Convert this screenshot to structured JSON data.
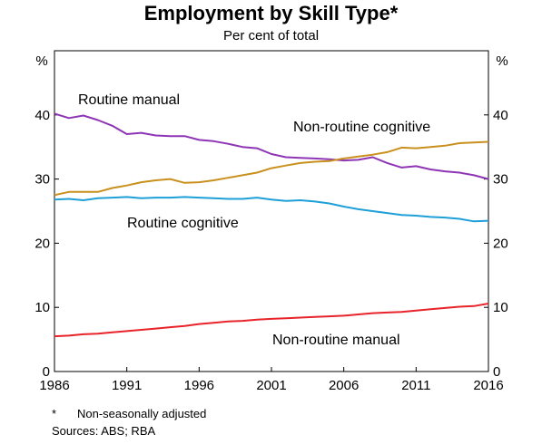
{
  "chart_data": {
    "type": "line",
    "title": "Employment by Skill Type*",
    "subtitle": "Per cent of total",
    "ylabel_left": "%",
    "ylabel_right": "%",
    "xlim": [
      1986,
      2016
    ],
    "ylim": [
      0,
      50
    ],
    "x_ticks": [
      1986,
      1991,
      1996,
      2001,
      2006,
      2011,
      2016
    ],
    "y_ticks": [
      0,
      10,
      20,
      30,
      40
    ],
    "grid": false,
    "series": [
      {
        "name": "Routine manual",
        "color": "#8e35b5",
        "x": [
          1986,
          1987,
          1988,
          1989,
          1990,
          1991,
          1992,
          1993,
          1994,
          1995,
          1996,
          1997,
          1998,
          1999,
          2000,
          2001,
          2002,
          2003,
          2004,
          2005,
          2006,
          2007,
          2008,
          2009,
          2010,
          2011,
          2012,
          2013,
          2014,
          2015,
          2016
        ],
        "values": [
          40.2,
          39.5,
          39.9,
          39.2,
          38.3,
          37.0,
          37.2,
          36.8,
          36.7,
          36.7,
          36.1,
          35.9,
          35.5,
          35.0,
          34.8,
          33.9,
          33.4,
          33.3,
          33.2,
          33.1,
          32.9,
          33.0,
          33.4,
          32.5,
          31.8,
          32.0,
          31.5,
          31.2,
          31.0,
          30.6,
          30.0
        ]
      },
      {
        "name": "Non-routine cognitive",
        "color": "#c9901e",
        "x": [
          1986,
          1987,
          1988,
          1989,
          1990,
          1991,
          1992,
          1993,
          1994,
          1995,
          1996,
          1997,
          1998,
          1999,
          2000,
          2001,
          2002,
          2003,
          2004,
          2005,
          2006,
          2007,
          2008,
          2009,
          2010,
          2011,
          2012,
          2013,
          2014,
          2015,
          2016
        ],
        "values": [
          27.5,
          28.0,
          28.0,
          28.0,
          28.6,
          29.0,
          29.5,
          29.8,
          30.0,
          29.4,
          29.5,
          29.8,
          30.2,
          30.6,
          31.0,
          31.7,
          32.1,
          32.5,
          32.7,
          32.8,
          33.2,
          33.5,
          33.8,
          34.2,
          34.9,
          34.8,
          35.0,
          35.2,
          35.6,
          35.7,
          35.8
        ]
      },
      {
        "name": "Routine cognitive",
        "color": "#1e9fd8",
        "x": [
          1986,
          1987,
          1988,
          1989,
          1990,
          1991,
          1992,
          1993,
          1994,
          1995,
          1996,
          1997,
          1998,
          1999,
          2000,
          2001,
          2002,
          2003,
          2004,
          2005,
          2006,
          2007,
          2008,
          2009,
          2010,
          2011,
          2012,
          2013,
          2014,
          2015,
          2016
        ],
        "values": [
          26.8,
          26.9,
          26.7,
          27.0,
          27.1,
          27.2,
          27.0,
          27.1,
          27.1,
          27.2,
          27.1,
          27.0,
          26.9,
          26.9,
          27.1,
          26.8,
          26.6,
          26.7,
          26.5,
          26.2,
          25.7,
          25.3,
          25.0,
          24.7,
          24.4,
          24.3,
          24.1,
          24.0,
          23.8,
          23.4,
          23.5
        ]
      },
      {
        "name": "Non-routine manual",
        "color": "#e8232a",
        "x": [
          1986,
          1987,
          1988,
          1989,
          1990,
          1991,
          1992,
          1993,
          1994,
          1995,
          1996,
          1997,
          1998,
          1999,
          2000,
          2001,
          2002,
          2003,
          2004,
          2005,
          2006,
          2007,
          2008,
          2009,
          2010,
          2011,
          2012,
          2013,
          2014,
          2015,
          2016
        ],
        "values": [
          5.5,
          5.6,
          5.8,
          5.9,
          6.1,
          6.3,
          6.5,
          6.7,
          6.9,
          7.1,
          7.4,
          7.6,
          7.8,
          7.9,
          8.1,
          8.2,
          8.3,
          8.4,
          8.5,
          8.6,
          8.7,
          8.9,
          9.1,
          9.2,
          9.3,
          9.5,
          9.7,
          9.9,
          10.1,
          10.2,
          10.6
        ]
      }
    ]
  },
  "footnote": {
    "marker": "*",
    "text": "Non-seasonally adjusted"
  },
  "sources": "Sources:  ABS; RBA"
}
